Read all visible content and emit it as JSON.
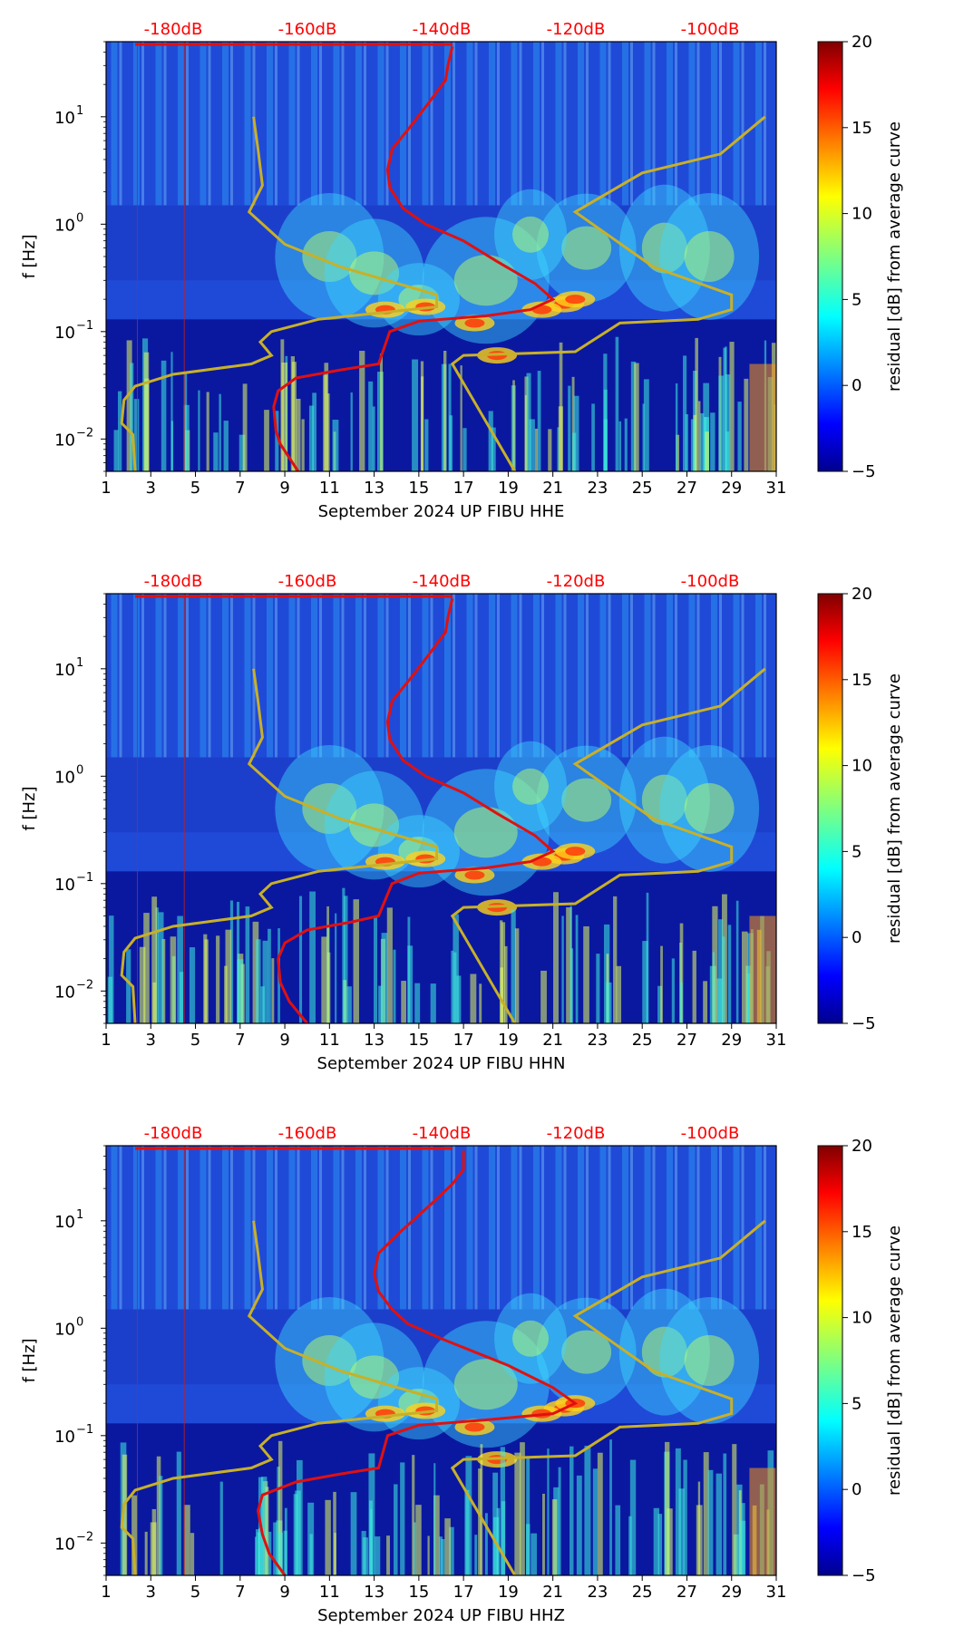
{
  "colors": {
    "noise_curve": "#e01010",
    "reference_curve": "#c8b028",
    "db_label": "#ff0000",
    "colormap": "jet"
  },
  "chart_data": [
    {
      "type": "heatmap",
      "title": "",
      "xlabel": "September 2024 UP FIBU  HHE",
      "ylabel": "f [Hz]",
      "xlim": [
        1,
        31
      ],
      "ylim": [
        0.005,
        50
      ],
      "yscale": "log",
      "x_ticks": [
        "1",
        "3",
        "5",
        "7",
        "9",
        "11",
        "13",
        "15",
        "17",
        "19",
        "21",
        "23",
        "25",
        "27",
        "29",
        "31"
      ],
      "y_ticks": [
        {
          "value": 0.01,
          "base": "10",
          "exp": "−2"
        },
        {
          "value": 0.1,
          "base": "10",
          "exp": "−1"
        },
        {
          "value": 1,
          "base": "10",
          "exp": "0"
        },
        {
          "value": 10,
          "base": "10",
          "exp": "1"
        }
      ],
      "top_labels": [
        "-180dB",
        "-160dB",
        "-140dB",
        "-120dB",
        "-100dB"
      ],
      "colorbar": {
        "label": "residual [dB] from average curve",
        "min": -5,
        "max": 20,
        "ticks": [
          "−5",
          "0",
          "5",
          "10",
          "15",
          "20"
        ]
      },
      "series": [
        {
          "name": "noise level curve",
          "points": [
            [
              9.6,
              0.005
            ],
            [
              8.8,
              0.009
            ],
            [
              8.6,
              0.012
            ],
            [
              8.5,
              0.02
            ],
            [
              8.7,
              0.028
            ],
            [
              9.5,
              0.037
            ],
            [
              11.5,
              0.044
            ],
            [
              13.2,
              0.05
            ],
            [
              13.7,
              0.1
            ],
            [
              15,
              0.125
            ],
            [
              18,
              0.14
            ],
            [
              20,
              0.16
            ],
            [
              21,
              0.2
            ],
            [
              20.2,
              0.28
            ],
            [
              18.5,
              0.45
            ],
            [
              17,
              0.7
            ],
            [
              15.3,
              1
            ],
            [
              14.3,
              1.4
            ],
            [
              13.7,
              2.2
            ],
            [
              13.6,
              3.2
            ],
            [
              13.8,
              5
            ],
            [
              14.6,
              8
            ],
            [
              15.5,
              14
            ],
            [
              16.2,
              22
            ],
            [
              16.3,
              30
            ],
            [
              16.5,
              45
            ]
          ]
        },
        {
          "name": "reference model",
          "points": [
            [
              2.3,
              0.005
            ],
            [
              2.2,
              0.011
            ],
            [
              1.7,
              0.014
            ],
            [
              1.8,
              0.023
            ],
            [
              2.3,
              0.031
            ],
            [
              4,
              0.04
            ],
            [
              7.5,
              0.05
            ],
            [
              8.4,
              0.06
            ],
            [
              7.9,
              0.08
            ],
            [
              8.4,
              0.1
            ],
            [
              10.5,
              0.13
            ],
            [
              15.8,
              0.17
            ],
            [
              15.8,
              0.22
            ],
            [
              11.5,
              0.4
            ],
            [
              9,
              0.65
            ],
            [
              7.4,
              1.3
            ],
            [
              8,
              2.3
            ],
            [
              7.8,
              5
            ],
            [
              7.6,
              10
            ]
          ]
        },
        {
          "name": "reference model high",
          "points": [
            [
              19.3,
              0.005
            ],
            [
              16.5,
              0.05
            ],
            [
              17,
              0.06
            ],
            [
              22,
              0.065
            ],
            [
              24,
              0.12
            ],
            [
              27.5,
              0.13
            ],
            [
              29,
              0.16
            ],
            [
              29,
              0.22
            ],
            [
              25.5,
              0.4
            ],
            [
              22,
              1.3
            ],
            [
              25,
              3
            ],
            [
              28.5,
              4.5
            ],
            [
              30.5,
              10
            ]
          ]
        }
      ]
    },
    {
      "type": "heatmap",
      "title": "",
      "xlabel": "September 2024 UP FIBU  HHN",
      "ylabel": "f [Hz]",
      "xlim": [
        1,
        31
      ],
      "ylim": [
        0.005,
        50
      ],
      "yscale": "log",
      "x_ticks": [
        "1",
        "3",
        "5",
        "7",
        "9",
        "11",
        "13",
        "15",
        "17",
        "19",
        "21",
        "23",
        "25",
        "27",
        "29",
        "31"
      ],
      "y_ticks": [
        {
          "value": 0.01,
          "base": "10",
          "exp": "−2"
        },
        {
          "value": 0.1,
          "base": "10",
          "exp": "−1"
        },
        {
          "value": 1,
          "base": "10",
          "exp": "0"
        },
        {
          "value": 10,
          "base": "10",
          "exp": "1"
        }
      ],
      "top_labels": [
        "-180dB",
        "-160dB",
        "-140dB",
        "-120dB",
        "-100dB"
      ],
      "colorbar": {
        "label": "residual [dB] from average curve",
        "min": -5,
        "max": 20,
        "ticks": [
          "−5",
          "0",
          "5",
          "10",
          "15",
          "20"
        ]
      },
      "series": [
        {
          "name": "noise level curve",
          "points": [
            [
              10,
              0.005
            ],
            [
              9.2,
              0.008
            ],
            [
              8.8,
              0.012
            ],
            [
              8.7,
              0.02
            ],
            [
              9,
              0.028
            ],
            [
              10,
              0.037
            ],
            [
              12,
              0.044
            ],
            [
              13.2,
              0.05
            ],
            [
              13.8,
              0.1
            ],
            [
              15,
              0.125
            ],
            [
              18,
              0.14
            ],
            [
              20,
              0.16
            ],
            [
              21,
              0.2
            ],
            [
              20.2,
              0.28
            ],
            [
              18.5,
              0.45
            ],
            [
              17,
              0.7
            ],
            [
              15.3,
              1
            ],
            [
              14.3,
              1.4
            ],
            [
              13.7,
              2.2
            ],
            [
              13.6,
              3.2
            ],
            [
              13.8,
              5
            ],
            [
              14.6,
              8
            ],
            [
              15.5,
              14
            ],
            [
              16.2,
              22
            ],
            [
              16.3,
              30
            ],
            [
              16.5,
              45
            ]
          ]
        },
        {
          "name": "reference model",
          "points": [
            [
              2.3,
              0.005
            ],
            [
              2.2,
              0.011
            ],
            [
              1.7,
              0.014
            ],
            [
              1.8,
              0.023
            ],
            [
              2.3,
              0.031
            ],
            [
              4,
              0.04
            ],
            [
              7.5,
              0.05
            ],
            [
              8.4,
              0.06
            ],
            [
              7.9,
              0.08
            ],
            [
              8.4,
              0.1
            ],
            [
              10.5,
              0.13
            ],
            [
              15.8,
              0.17
            ],
            [
              15.8,
              0.22
            ],
            [
              11.5,
              0.4
            ],
            [
              9,
              0.65
            ],
            [
              7.4,
              1.3
            ],
            [
              8,
              2.3
            ],
            [
              7.8,
              5
            ],
            [
              7.6,
              10
            ]
          ]
        },
        {
          "name": "reference model high",
          "points": [
            [
              19.3,
              0.005
            ],
            [
              16.5,
              0.05
            ],
            [
              17,
              0.06
            ],
            [
              22,
              0.065
            ],
            [
              24,
              0.12
            ],
            [
              27.5,
              0.13
            ],
            [
              29,
              0.16
            ],
            [
              29,
              0.22
            ],
            [
              25.5,
              0.4
            ],
            [
              22,
              1.3
            ],
            [
              25,
              3
            ],
            [
              28.5,
              4.5
            ],
            [
              30.5,
              10
            ]
          ]
        }
      ]
    },
    {
      "type": "heatmap",
      "title": "",
      "xlabel": "September 2024 UP FIBU  HHZ",
      "ylabel": "f [Hz]",
      "xlim": [
        1,
        31
      ],
      "ylim": [
        0.005,
        50
      ],
      "yscale": "log",
      "x_ticks": [
        "1",
        "3",
        "5",
        "7",
        "9",
        "11",
        "13",
        "15",
        "17",
        "19",
        "21",
        "23",
        "25",
        "27",
        "29",
        "31"
      ],
      "y_ticks": [
        {
          "value": 0.01,
          "base": "10",
          "exp": "−2"
        },
        {
          "value": 0.1,
          "base": "10",
          "exp": "−1"
        },
        {
          "value": 1,
          "base": "10",
          "exp": "0"
        },
        {
          "value": 10,
          "base": "10",
          "exp": "1"
        }
      ],
      "top_labels": [
        "-180dB",
        "-160dB",
        "-140dB",
        "-120dB",
        "-100dB"
      ],
      "colorbar": {
        "label": "residual [dB] from average curve",
        "min": -5,
        "max": 20,
        "ticks": [
          "−5",
          "0",
          "5",
          "10",
          "15",
          "20"
        ]
      },
      "series": [
        {
          "name": "noise level curve",
          "points": [
            [
              9,
              0.005
            ],
            [
              8.3,
              0.008
            ],
            [
              8,
              0.012
            ],
            [
              7.8,
              0.02
            ],
            [
              8,
              0.028
            ],
            [
              9.5,
              0.037
            ],
            [
              11.5,
              0.044
            ],
            [
              13.2,
              0.05
            ],
            [
              13.6,
              0.1
            ],
            [
              15,
              0.125
            ],
            [
              18,
              0.14
            ],
            [
              21,
              0.16
            ],
            [
              22,
              0.2
            ],
            [
              21,
              0.28
            ],
            [
              19,
              0.45
            ],
            [
              16,
              0.8
            ],
            [
              14.5,
              1.1
            ],
            [
              13.8,
              1.5
            ],
            [
              13.2,
              2.2
            ],
            [
              13,
              3.2
            ],
            [
              13.2,
              5
            ],
            [
              14.2,
              8
            ],
            [
              15.5,
              14
            ],
            [
              16.5,
              22
            ],
            [
              17,
              30
            ],
            [
              17,
              45
            ]
          ]
        },
        {
          "name": "reference model",
          "points": [
            [
              2.3,
              0.005
            ],
            [
              2.2,
              0.011
            ],
            [
              1.7,
              0.014
            ],
            [
              1.8,
              0.023
            ],
            [
              2.3,
              0.031
            ],
            [
              4,
              0.04
            ],
            [
              7.5,
              0.05
            ],
            [
              8.4,
              0.06
            ],
            [
              7.9,
              0.08
            ],
            [
              8.4,
              0.1
            ],
            [
              10.5,
              0.13
            ],
            [
              15.8,
              0.17
            ],
            [
              15.8,
              0.22
            ],
            [
              11.5,
              0.4
            ],
            [
              9,
              0.65
            ],
            [
              7.4,
              1.3
            ],
            [
              8,
              2.3
            ],
            [
              7.8,
              5
            ],
            [
              7.6,
              10
            ]
          ]
        },
        {
          "name": "reference model high",
          "points": [
            [
              19.3,
              0.005
            ],
            [
              16.5,
              0.05
            ],
            [
              17,
              0.06
            ],
            [
              22,
              0.065
            ],
            [
              24,
              0.12
            ],
            [
              27.5,
              0.13
            ],
            [
              29,
              0.16
            ],
            [
              29,
              0.22
            ],
            [
              25.5,
              0.4
            ],
            [
              22,
              1.3
            ],
            [
              25,
              3
            ],
            [
              28.5,
              4.5
            ],
            [
              30.5,
              10
            ]
          ]
        }
      ]
    }
  ]
}
